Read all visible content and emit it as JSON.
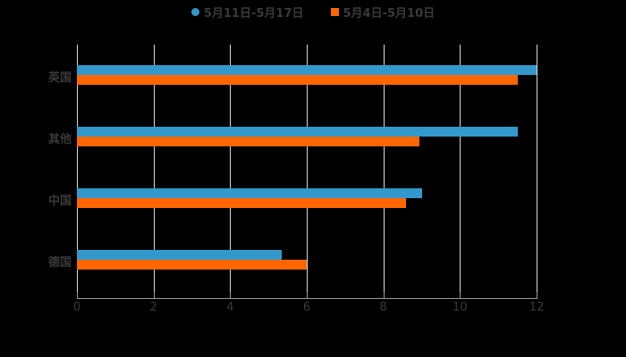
{
  "legend": [
    {
      "label": "5月11日-5月17日",
      "color": "#3399cc"
    },
    {
      "label": "5月4日-5月10日",
      "color": "#ff6600"
    }
  ],
  "chart_data": {
    "type": "bar",
    "orientation": "horizontal",
    "title": "",
    "xlabel": "",
    "ylabel": "",
    "categories": [
      "英国",
      "其他",
      "中国",
      "德国"
    ],
    "series": [
      {
        "name": "5月11日-5月17日",
        "color": "#3399cc",
        "values": [
          12,
          11.5,
          9,
          5.35
        ]
      },
      {
        "name": "5月4日-5月10日",
        "color": "#ff6600",
        "values": [
          11.5,
          8.95,
          8.6,
          6
        ]
      }
    ],
    "xlim": [
      0,
      12
    ],
    "x_ticks": [
      "0",
      "2",
      "4",
      "6",
      "8",
      "10",
      "12"
    ],
    "grid": true,
    "legend_position": "top"
  }
}
